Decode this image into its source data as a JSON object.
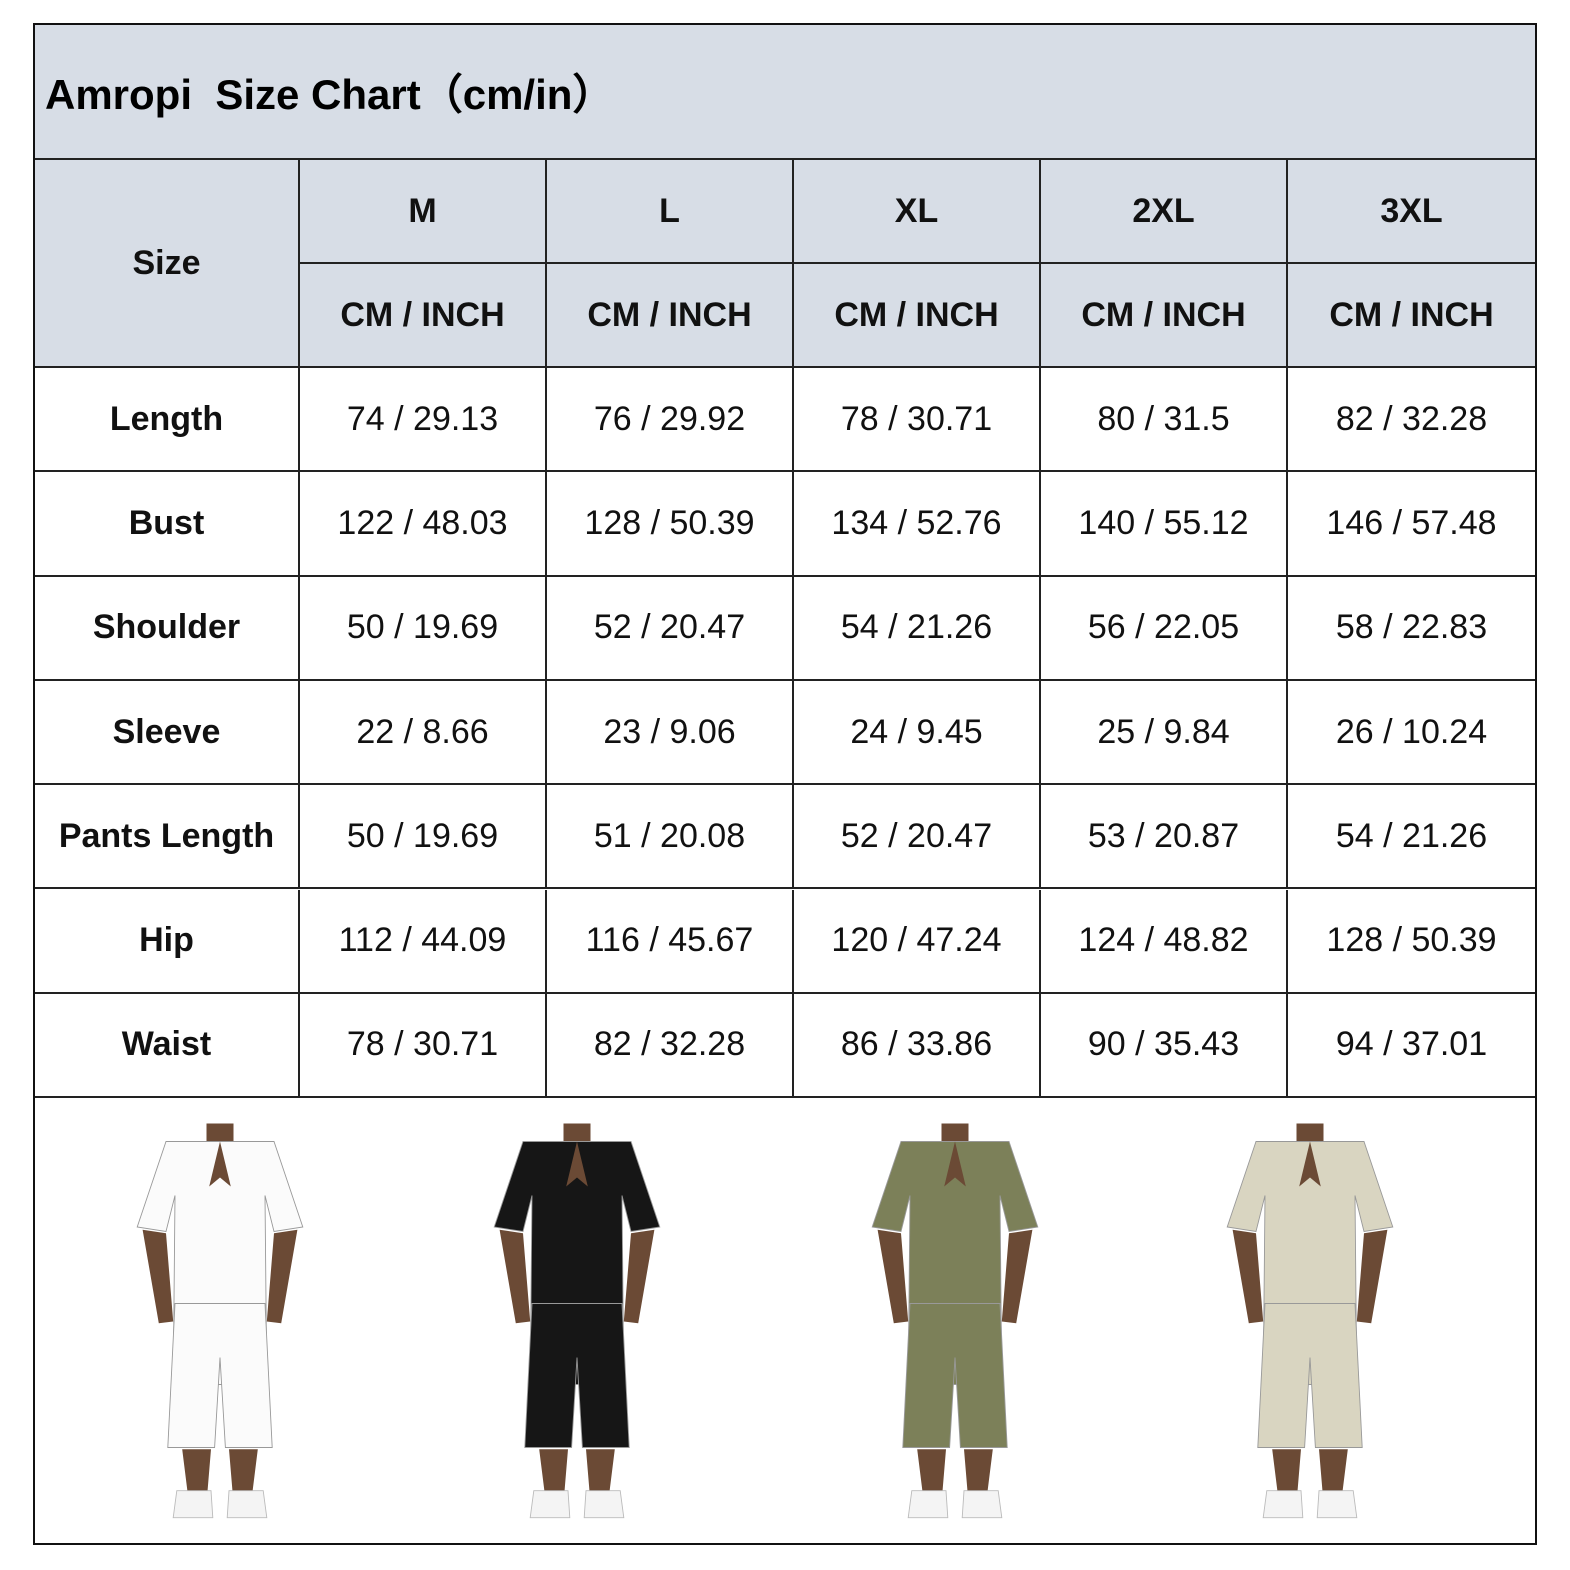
{
  "title": "Amropi  Size Chart（cm/in）",
  "table": {
    "size_label": "Size",
    "sizes": [
      "M",
      "L",
      "XL",
      "2XL",
      "3XL"
    ],
    "units": [
      "CM / INCH",
      "CM / INCH",
      "CM / INCH",
      "CM / INCH",
      "CM / INCH"
    ],
    "rows": [
      {
        "label": "Length",
        "cells": [
          "74 / 29.13",
          "76 / 29.92",
          "78 / 30.71",
          "80 / 31.5",
          "82 / 32.28"
        ]
      },
      {
        "label": "Bust",
        "cells": [
          "122 / 48.03",
          "128 / 50.39",
          "134 / 52.76",
          "140 / 55.12",
          "146 / 57.48"
        ]
      },
      {
        "label": "Shoulder",
        "cells": [
          "50 / 19.69",
          "52 / 20.47",
          "54 / 21.26",
          "56 / 22.05",
          "58 / 22.83"
        ]
      },
      {
        "label": "Sleeve",
        "cells": [
          "22 / 8.66",
          "23 / 9.06",
          "24 / 9.45",
          "25 / 9.84",
          "26 / 10.24"
        ]
      },
      {
        "label": "Pants Length",
        "cells": [
          "50 / 19.69",
          "51 / 20.08",
          "52 / 20.47",
          "53 / 20.87",
          "54 / 21.26"
        ]
      },
      {
        "label": "Hip",
        "cells": [
          "112 / 44.09",
          "116 / 45.67",
          "120 / 47.24",
          "124 / 48.82",
          "128 / 50.39"
        ]
      },
      {
        "label": "Waist",
        "cells": [
          "78 / 30.71",
          "82 / 32.28",
          "86 / 33.86",
          "90 / 35.43",
          "94 / 37.01"
        ]
      }
    ]
  }
}
